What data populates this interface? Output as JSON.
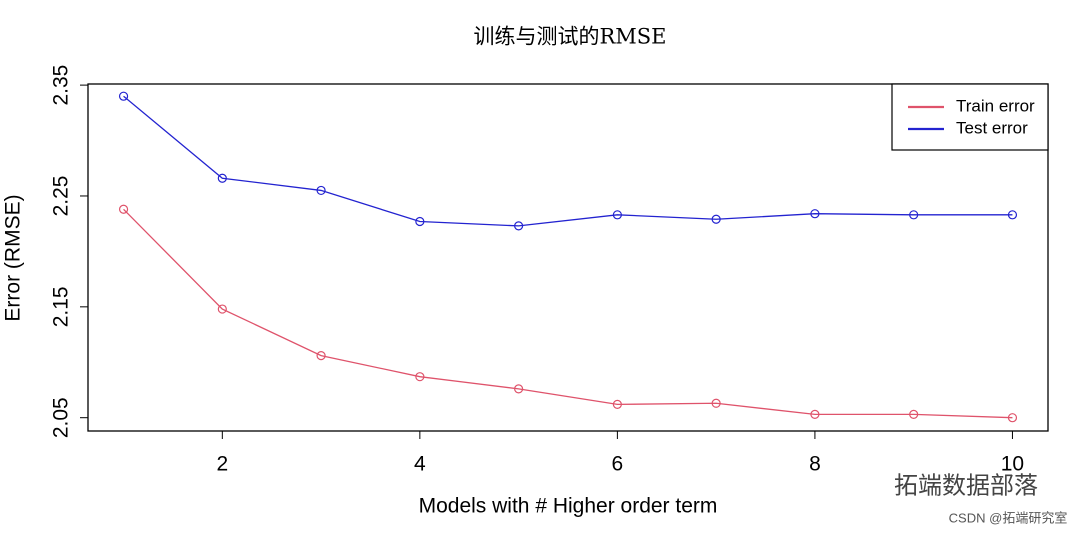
{
  "chart_data": {
    "type": "line",
    "title": "训练与测试的RMSE",
    "x_label": "Models with # Higher order term",
    "y_label": "Error (RMSE)",
    "x": [
      1,
      2,
      3,
      4,
      5,
      6,
      7,
      8,
      9,
      10
    ],
    "series": [
      {
        "name": "Train error",
        "color": "#df536b",
        "values": [
          2.238,
          2.148,
          2.106,
          2.087,
          2.076,
          2.062,
          2.063,
          2.053,
          2.053,
          2.05
        ]
      },
      {
        "name": "Test error",
        "color": "#2323d0",
        "values": [
          2.34,
          2.266,
          2.255,
          2.227,
          2.223,
          2.233,
          2.229,
          2.234,
          2.233,
          2.233
        ]
      }
    ],
    "xlim": [
      0.64,
      10.36
    ],
    "ylim": [
      2.038,
      2.351
    ],
    "xticks": [
      2,
      4,
      6,
      8,
      10
    ],
    "yticks": [
      2.05,
      2.15,
      2.25,
      2.35
    ],
    "legend": "top-right",
    "watermark": [
      "拓端数据部落",
      "CSDN @拓端研究室"
    ]
  }
}
